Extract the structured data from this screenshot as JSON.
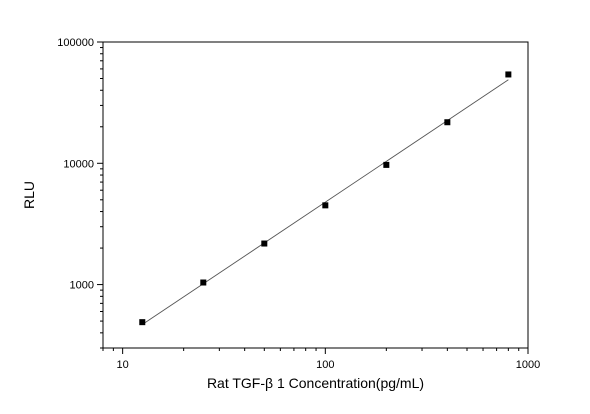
{
  "chart_data": {
    "type": "scatter",
    "title": "",
    "xlabel": "Rat  TGF-β 1  Concentration(pg/mL)",
    "ylabel": "RLU",
    "x_scale": "log",
    "y_scale": "log",
    "xlim": [
      8,
      1000
    ],
    "ylim": [
      300,
      100000
    ],
    "x_ticks": [
      10,
      100,
      1000
    ],
    "x_tick_labels": [
      "10",
      "100",
      "1000"
    ],
    "y_ticks": [
      1000,
      10000,
      100000
    ],
    "y_tick_labels": [
      "1000",
      "10000",
      "100000"
    ],
    "grid": false,
    "legend": "none",
    "series": [
      {
        "x": [
          12.5,
          25,
          50,
          100,
          200,
          400,
          800
        ],
        "y": [
          490,
          1040,
          2180,
          4500,
          9700,
          21800,
          54000
        ],
        "marker": "square",
        "color": "#000000",
        "fit_line": true
      }
    ]
  }
}
